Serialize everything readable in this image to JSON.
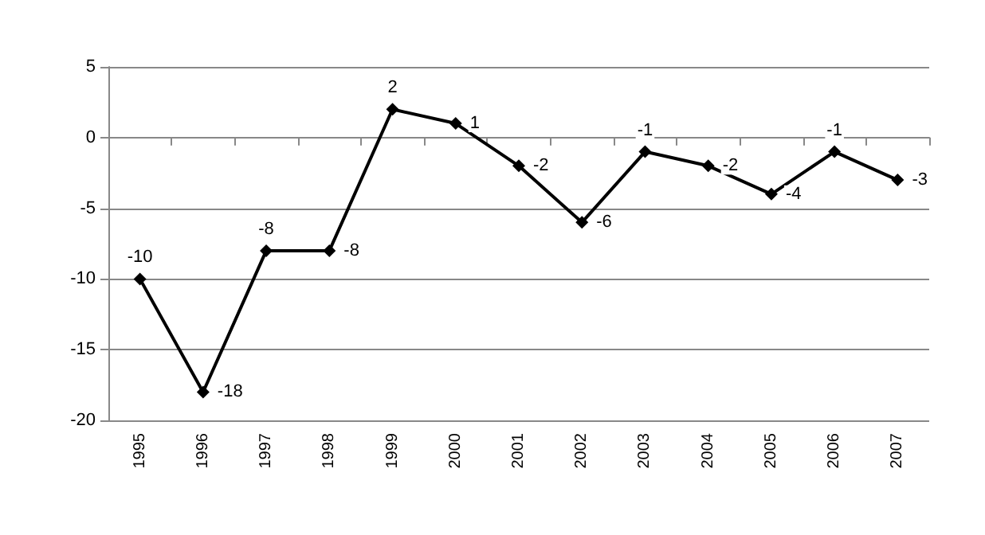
{
  "chart_data": {
    "type": "line",
    "categories": [
      "1995",
      "1996",
      "1997",
      "1998",
      "1999",
      "2000",
      "2001",
      "2002",
      "2003",
      "2004",
      "2005",
      "2006",
      "2007"
    ],
    "series": [
      {
        "color": "#000000",
        "values": [
          -10,
          -18,
          -8,
          -8,
          2,
          1,
          -2,
          -6,
          -1,
          -2,
          -4,
          -1,
          -3
        ]
      }
    ],
    "ylim": [
      -20,
      5
    ],
    "yticks": [
      -20,
      -15,
      -10,
      -5,
      0,
      5
    ],
    "grid": "y",
    "marker": "diamond",
    "line_style": "solid",
    "data_labels": true
  }
}
